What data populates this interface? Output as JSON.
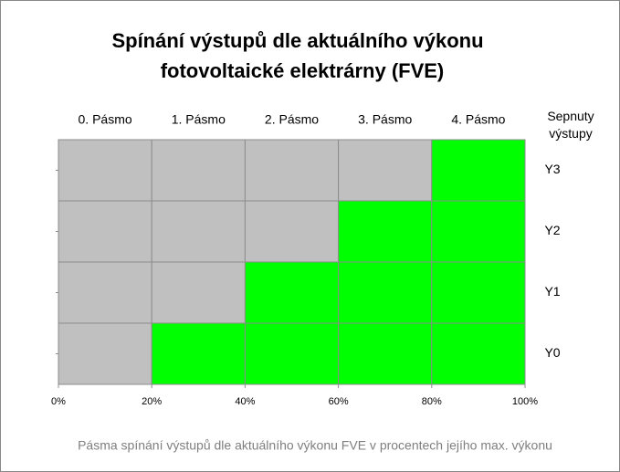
{
  "chart_data": {
    "type": "heatmap",
    "title": [
      "Spínání výstupů dle aktuálního výkonu",
      "fotovoltaické elektrárny (FVE)"
    ],
    "columns": [
      "0. Pásmo",
      "1. Pásmo",
      "2. Pásmo",
      "3. Pásmo",
      "4.  Pásmo"
    ],
    "rows": [
      "Y0",
      "Y1",
      "Y2",
      "Y3"
    ],
    "rows_title": "Sepnuty výstupy",
    "values": [
      [
        0,
        1,
        1,
        1,
        1
      ],
      [
        0,
        0,
        1,
        1,
        1
      ],
      [
        0,
        0,
        0,
        1,
        1
      ],
      [
        0,
        0,
        0,
        0,
        1
      ]
    ],
    "color_scale": [
      "#c0c0c0",
      "#00ff00"
    ],
    "xlim": [
      0,
      100
    ],
    "xticks": [
      {
        "value": 0,
        "label": "0%"
      },
      {
        "value": 20,
        "label": "20%"
      },
      {
        "value": 40,
        "label": "40%"
      },
      {
        "value": 60,
        "label": "60%"
      },
      {
        "value": 80,
        "label": "80%"
      },
      {
        "value": 100,
        "label": "100%"
      }
    ],
    "x_label": "Pásma spínání výstupů dle aktuálního výkonu FVE v procentech jejího max. výkonu"
  }
}
